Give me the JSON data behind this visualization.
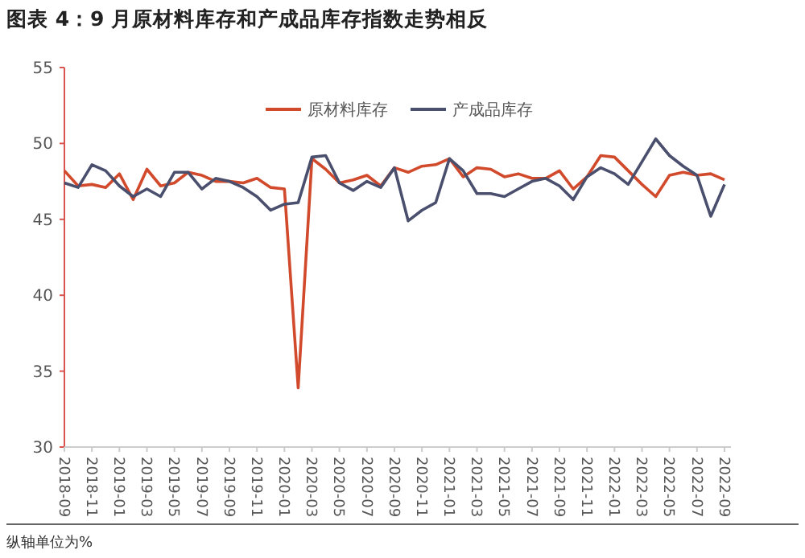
{
  "chart_data": {
    "type": "line",
    "title": "图表 4：9 月原材料库存和产成品库存指数走势相反",
    "categories": [
      "2018-09",
      null,
      "2018-11",
      null,
      "2019-01",
      null,
      "2019-03",
      null,
      "2019-05",
      null,
      "2019-07",
      null,
      "2019-09",
      null,
      "2019-11",
      null,
      "2020-01",
      null,
      "2020-03",
      null,
      "2020-05",
      null,
      "2020-07",
      null,
      "2020-09",
      null,
      "2020-11",
      null,
      "2021-01",
      null,
      "2021-03",
      null,
      "2021-05",
      null,
      "2021-07",
      null,
      "2021-09",
      null,
      "2021-11",
      null,
      "2022-01",
      null,
      "2022-03",
      null,
      "2022-05",
      null,
      "2022-07",
      null,
      "2022-09"
    ],
    "series": [
      {
        "name": "原材料库存",
        "color": "#d24a2c",
        "values": [
          48.2,
          47.2,
          47.3,
          47.1,
          48.0,
          46.3,
          48.3,
          47.2,
          47.4,
          48.1,
          47.9,
          47.5,
          47.5,
          47.4,
          47.7,
          47.1,
          47.0,
          33.9,
          49.0,
          48.3,
          47.4,
          47.6,
          47.9,
          47.2,
          48.4,
          48.1,
          48.5,
          48.6,
          49.0,
          47.8,
          48.4,
          48.3,
          47.8,
          48.0,
          47.7,
          47.7,
          48.2,
          47.0,
          47.8,
          49.2,
          49.1,
          48.2,
          47.3,
          46.5,
          47.9,
          48.1,
          47.9,
          48.0,
          47.6
        ]
      },
      {
        "name": "产成品库存",
        "color": "#4b4f6e",
        "values": [
          47.4,
          47.1,
          48.6,
          48.2,
          47.2,
          46.5,
          47.0,
          46.5,
          48.1,
          48.1,
          47.0,
          47.7,
          47.5,
          47.1,
          46.5,
          45.6,
          46.0,
          46.1,
          49.1,
          49.2,
          47.4,
          46.9,
          47.5,
          47.1,
          48.4,
          44.9,
          45.6,
          46.1,
          49.0,
          48.2,
          46.7,
          46.7,
          46.5,
          47.0,
          47.5,
          47.7,
          47.2,
          46.3,
          47.8,
          48.4,
          48.0,
          47.3,
          48.8,
          50.3,
          49.2,
          48.5,
          47.9,
          45.2,
          47.3
        ]
      }
    ],
    "ylim": [
      30,
      55
    ],
    "yticks": [
      30,
      35,
      40,
      45,
      50,
      55
    ],
    "legend": "top right",
    "grid": false,
    "marker": "none",
    "line_style": "solid",
    "annotations": [
      "纵轴单位为%"
    ]
  }
}
